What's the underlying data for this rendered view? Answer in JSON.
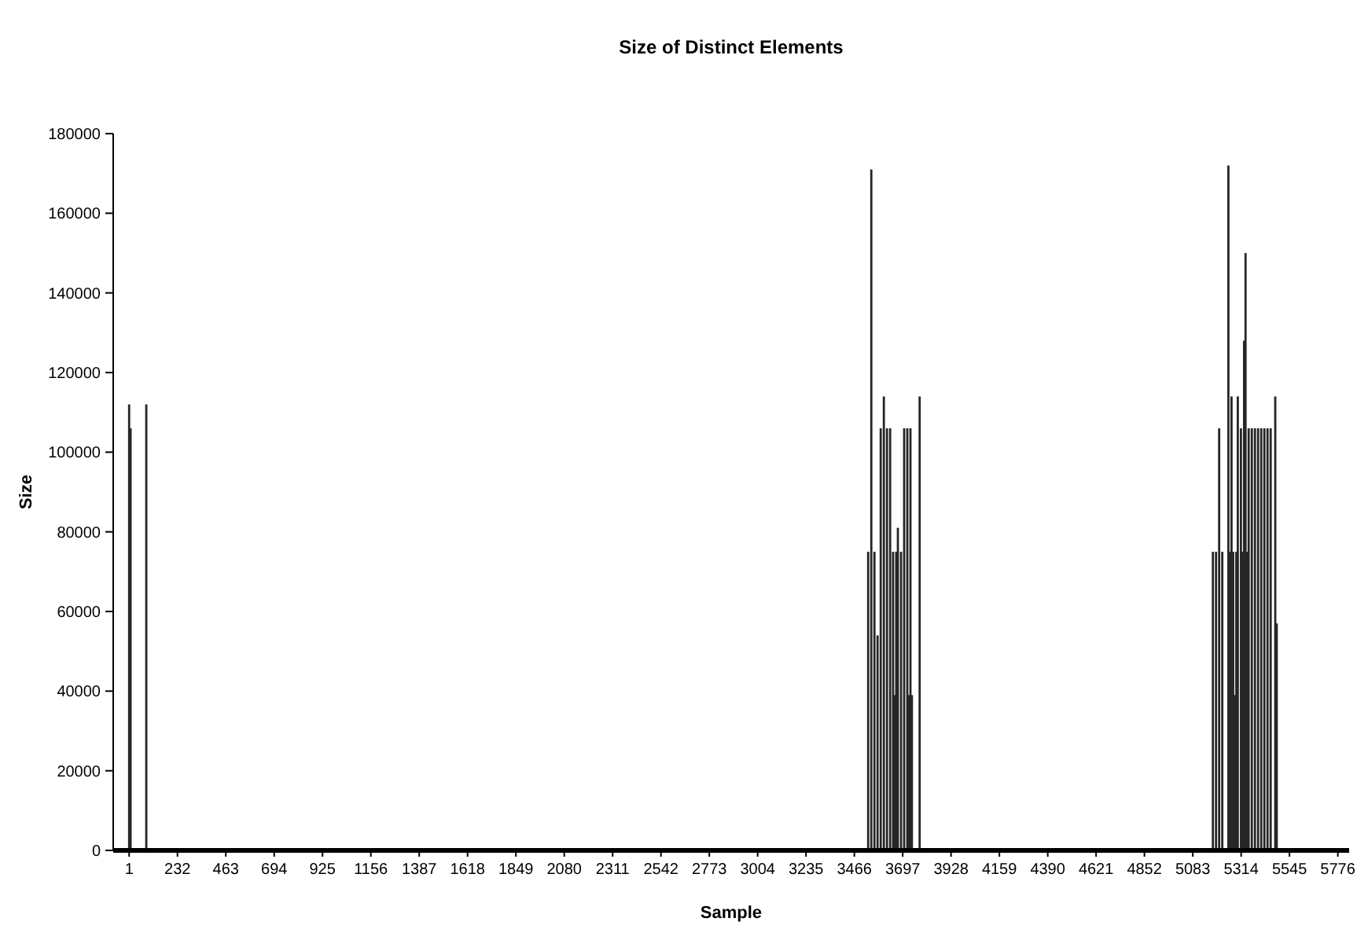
{
  "chart_data": {
    "type": "bar",
    "title": "Size of Distinct Elements",
    "xlabel": "Sample",
    "ylabel": "Size",
    "x": [
      1,
      8,
      83,
      3532,
      3547,
      3562,
      3577,
      3592,
      3607,
      3622,
      3637,
      3651,
      3659,
      3666,
      3674,
      3689,
      3704,
      3719,
      3726,
      3734,
      3741,
      3778,
      5179,
      5194,
      5209,
      5224,
      5253,
      5261,
      5268,
      5276,
      5283,
      5291,
      5298,
      5313,
      5320,
      5328,
      5335,
      5343,
      5350,
      5365,
      5380,
      5395,
      5410,
      5425,
      5440,
      5455,
      5477,
      5484
    ],
    "values": [
      112000,
      106000,
      112000,
      75000,
      171000,
      75000,
      54000,
      106000,
      114000,
      106000,
      106000,
      75000,
      39000,
      75000,
      81000,
      75000,
      106000,
      106000,
      39000,
      106000,
      39000,
      114000,
      75000,
      75000,
      106000,
      75000,
      172000,
      75000,
      114000,
      75000,
      39000,
      75000,
      114000,
      106000,
      75000,
      128000,
      150000,
      75000,
      106000,
      106000,
      106000,
      106000,
      106000,
      106000,
      106000,
      106000,
      114000,
      57000
    ],
    "color": "#262626",
    "xlim": [
      -75,
      5830
    ],
    "xticks": [
      1,
      232,
      463,
      694,
      925,
      1156,
      1387,
      1618,
      1849,
      2080,
      2311,
      2542,
      2773,
      3004,
      3235,
      3466,
      3697,
      3928,
      4159,
      4390,
      4621,
      4852,
      5083,
      5314,
      5545,
      5776
    ],
    "ylim": [
      0,
      180000
    ],
    "yticks": [
      0,
      20000,
      40000,
      60000,
      80000,
      100000,
      120000,
      140000,
      160000,
      180000
    ],
    "grid": false
  }
}
